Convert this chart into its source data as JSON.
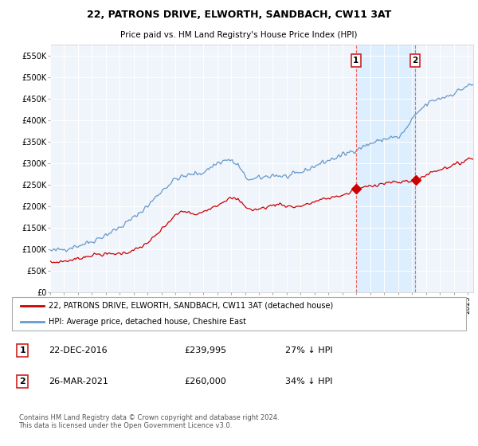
{
  "title1": "22, PATRONS DRIVE, ELWORTH, SANDBACH, CW11 3AT",
  "title2": "Price paid vs. HM Land Registry's House Price Index (HPI)",
  "legend_red": "22, PATRONS DRIVE, ELWORTH, SANDBACH, CW11 3AT (detached house)",
  "legend_blue": "HPI: Average price, detached house, Cheshire East",
  "annotation1_date": "22-DEC-2016",
  "annotation1_price": "£239,995",
  "annotation1_hpi": "27% ↓ HPI",
  "annotation2_date": "26-MAR-2021",
  "annotation2_price": "£260,000",
  "annotation2_hpi": "34% ↓ HPI",
  "marker1_year": 2016.97,
  "marker2_year": 2021.23,
  "ylim": [
    0,
    580000
  ],
  "xlim_left": 1995.0,
  "xlim_right": 2025.4,
  "footer": "Contains HM Land Registry data © Crown copyright and database right 2024.\nThis data is licensed under the Open Government Licence v3.0.",
  "plot_bg": "#f0f4fb",
  "red_color": "#cc0000",
  "blue_color": "#6699cc",
  "vline1_color": "#ee6666",
  "vline2_color": "#ee6666",
  "span_color": "#ddeeff",
  "grid_color": "#ffffff",
  "marker1_value": 239995,
  "marker2_value": 260000
}
